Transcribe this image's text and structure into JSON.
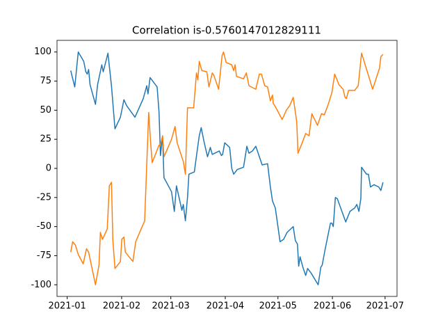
{
  "chart_data": {
    "type": "line",
    "title": "Correlation is-0.5760147012829111",
    "xlim": [
      -5.8,
      187.8
    ],
    "ylim": [
      -110,
      110
    ],
    "xticks": [
      {
        "value": 0,
        "label": "2021-01"
      },
      {
        "value": 31,
        "label": "2021-02"
      },
      {
        "value": 59,
        "label": "2021-03"
      },
      {
        "value": 90,
        "label": "2021-04"
      },
      {
        "value": 120,
        "label": "2021-05"
      },
      {
        "value": 151,
        "label": "2021-06"
      },
      {
        "value": 181,
        "label": "2021-07"
      }
    ],
    "yticks": [
      -100,
      -75,
      -50,
      -25,
      0,
      25,
      50,
      75,
      100
    ],
    "grid": false,
    "series": [
      {
        "color": "#1f77b4",
        "x": [
          2,
          4.3,
          6.3,
          9.4,
          10.6,
          11.4,
          12.2,
          13,
          16.1,
          17.3,
          19.7,
          20.5,
          23.2,
          25.2,
          27.2,
          30.3,
          32.3,
          33.8,
          38.6,
          43.3,
          45.3,
          46,
          47.2,
          51.2,
          52.3,
          53.1,
          54.3,
          55.1,
          59.4,
          61,
          62.2,
          65.3,
          66.1,
          67.3,
          68.5,
          69.3,
          72.4,
          74,
          75.2,
          76.3,
          77.9,
          79.9,
          81.5,
          82.6,
          86.6,
          87.8,
          88.5,
          89.7,
          92.5,
          93.7,
          94.8,
          96.8,
          100.4,
          102.3,
          103.5,
          105.5,
          107.4,
          111,
          114.1,
          115.7,
          116.9,
          118.5,
          121.2,
          123.2,
          125.2,
          128.7,
          129.9,
          131.1,
          131.8,
          132.6,
          134.2,
          135.8,
          136.9,
          138.9,
          142.9,
          144.4,
          145.2,
          146.8,
          149.9,
          150.7,
          151.5,
          152.7,
          153.8,
          156.2,
          158.6,
          161,
          163.7,
          164.9,
          166.1,
          167.2,
          167.6,
          170.4,
          171.5,
          172.7,
          174.7,
          177.4,
          178.6,
          179.8
        ],
        "values": [
          84,
          70,
          100,
          92,
          83,
          81,
          85,
          72,
          55,
          72,
          89,
          83,
          99,
          71,
          34,
          44,
          59,
          54,
          44,
          60,
          71,
          64,
          78,
          70,
          48,
          11,
          28,
          -8,
          -20,
          -37,
          -15,
          -36,
          -31,
          -45,
          -25,
          -5,
          -3,
          15,
          28,
          35,
          23,
          10,
          18,
          12,
          15,
          11,
          12,
          22,
          18,
          0,
          -5,
          -1,
          1,
          19,
          13,
          15,
          19,
          3,
          4,
          -16,
          -28,
          -34,
          -63,
          -61,
          -55,
          -50,
          -62,
          -65,
          -84,
          -76,
          -85,
          -92,
          -86,
          -90,
          -100,
          -85,
          -83,
          -70,
          -47,
          -47,
          -50,
          -25,
          -26,
          -36,
          -46,
          -37,
          -34,
          -31,
          -37,
          -26,
          1,
          -5,
          -5,
          -16,
          -14,
          -16,
          -19,
          -12
        ]
      },
      {
        "color": "#ff7f0e",
        "x": [
          2,
          3.1,
          4.7,
          6.3,
          9.1,
          11,
          12.2,
          16.1,
          18.1,
          18.9,
          20.1,
          22.8,
          24,
          25.2,
          26,
          27.2,
          30.3,
          31.1,
          32.3,
          33.1,
          37.4,
          39,
          44.1,
          46.4,
          47.6,
          48.4,
          52.3,
          53.1,
          54.3,
          55.1,
          59.4,
          61.4,
          62.6,
          66.1,
          67.3,
          68.5,
          72,
          73.6,
          74.4,
          75.2,
          76.7,
          79.5,
          80.7,
          82.6,
          83.5,
          86.2,
          88.2,
          89,
          90.5,
          93.7,
          94.8,
          95.6,
          96.4,
          100.4,
          102,
          103.5,
          107.4,
          109.4,
          110.6,
          112.5,
          114.1,
          115.7,
          116.9,
          117.3,
          118.9,
          122.4,
          124.8,
          126.7,
          128.7,
          130.7,
          131.4,
          133.8,
          135.8,
          137.7,
          139.3,
          142.5,
          144.8,
          146.4,
          148.4,
          150.7,
          152.3,
          154.7,
          157.1,
          158.2,
          159,
          160.2,
          163.7,
          165.7,
          167.6,
          171.5,
          173.9,
          177.8,
          178.6,
          179.8
        ],
        "values": [
          -72,
          -63,
          -66,
          -74,
          -82,
          -69,
          -72,
          -100,
          -83,
          -55,
          -61,
          -52,
          -15,
          -12,
          -62,
          -86,
          -80,
          -61,
          -59,
          -72,
          -80,
          -63,
          -45,
          48,
          20,
          5,
          20,
          20,
          28,
          10,
          25,
          36,
          22,
          6,
          -5,
          52,
          52,
          82,
          76,
          92,
          84,
          83,
          70,
          82,
          80,
          68,
          97,
          100,
          91,
          89,
          84,
          89,
          79,
          77,
          82,
          71,
          68,
          81,
          81,
          71,
          70,
          58,
          63,
          56,
          52,
          42,
          50,
          54,
          61,
          40,
          13,
          22,
          30,
          28,
          47,
          37,
          47,
          46,
          54,
          65,
          81,
          72,
          68,
          61,
          60,
          67,
          67,
          71,
          99,
          80,
          68,
          86,
          96,
          98
        ]
      }
    ]
  }
}
